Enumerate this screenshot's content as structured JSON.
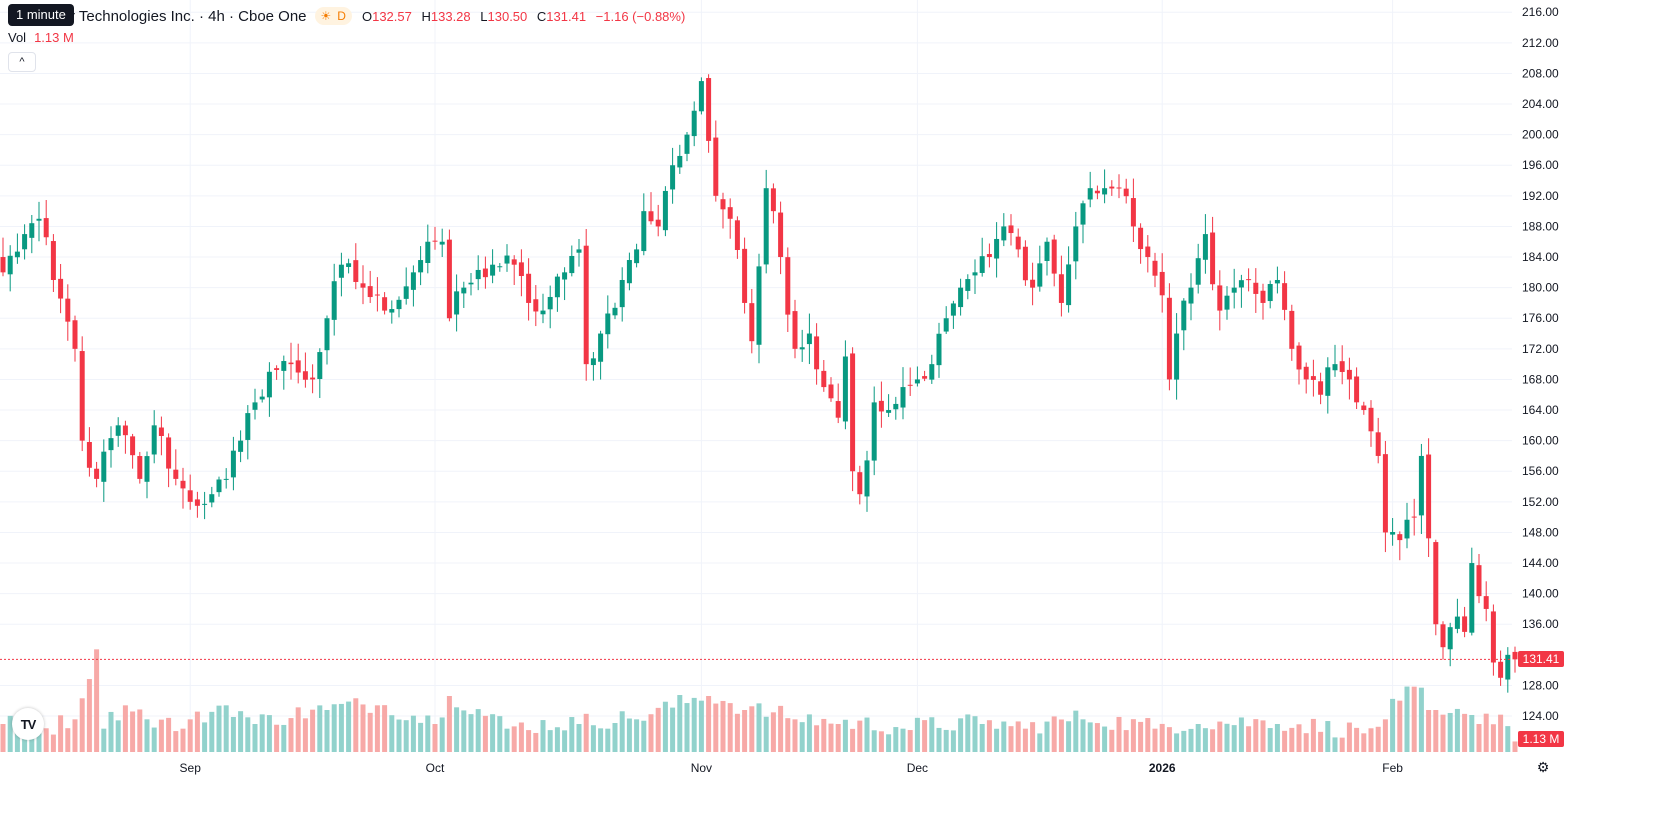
{
  "header": {
    "tooltip": "1 minute",
    "title_visible": "r Technologies Inc. · 4h · Cboe One",
    "session_badge": "D",
    "ohlc": {
      "o_label": "O",
      "o": "132.57",
      "h_label": "H",
      "h": "133.28",
      "l_label": "L",
      "l": "130.50",
      "c_label": "C",
      "c": "131.41",
      "change": "−1.16 (−0.88%)"
    },
    "vol_label": "Vol",
    "vol_value": "1.13 M",
    "collapse_icon": "chevron-up-icon",
    "collapse_glyph": "^"
  },
  "logo_text": "TV",
  "last_price_tag": "131.41",
  "last_volume_tag": "1.13 M",
  "settings_icon": "settings-gear-icon",
  "settings_glyph": "⚙",
  "colors": {
    "up": "#089981",
    "down": "#f23645",
    "up_vol": "#92d2cc",
    "down_vol": "#f7a9a7",
    "grid": "#f0f3fa",
    "text": "#131722"
  },
  "chart_data": {
    "type": "candlestick",
    "timeframe": "4h",
    "y_axis_ticks": [
      "216.00",
      "212.00",
      "208.00",
      "204.00",
      "200.00",
      "196.00",
      "192.00",
      "188.00",
      "184.00",
      "180.00",
      "176.00",
      "172.00",
      "168.00",
      "164.00",
      "160.00",
      "156.00",
      "152.00",
      "148.00",
      "144.00",
      "140.00",
      "136.00",
      "128.00",
      "124.00"
    ],
    "ylim": [
      119.3,
      217.6
    ],
    "x_axis_labels": [
      {
        "label": "Sep",
        "bar": 26
      },
      {
        "label": "Oct",
        "bar": 60
      },
      {
        "label": "Nov",
        "bar": 97
      },
      {
        "label": "Dec",
        "bar": 127
      },
      {
        "label": "2026",
        "bar": 161
      },
      {
        "label": "Feb",
        "bar": 193
      }
    ],
    "last_price": 131.41,
    "anchors": [
      [
        0,
        182.0
      ],
      [
        3,
        187.0
      ],
      [
        5,
        189.0
      ],
      [
        7,
        181.0
      ],
      [
        10,
        172.0
      ],
      [
        11,
        160.0
      ],
      [
        13,
        155.0
      ],
      [
        16,
        162.0
      ],
      [
        19,
        155.0
      ],
      [
        21,
        162.0
      ],
      [
        24,
        155.0
      ],
      [
        26,
        152.0
      ],
      [
        29,
        153.0
      ],
      [
        31,
        155.0
      ],
      [
        33,
        160.0
      ],
      [
        35,
        165.0
      ],
      [
        37,
        169.0
      ],
      [
        40,
        170.0
      ],
      [
        43,
        168.0
      ],
      [
        45,
        176.0
      ],
      [
        47,
        183.0
      ],
      [
        50,
        180.0
      ],
      [
        53,
        177.0
      ],
      [
        57,
        182.0
      ],
      [
        59,
        186.0
      ],
      [
        61,
        186.0
      ],
      [
        62,
        176.0
      ],
      [
        64,
        180.0
      ],
      [
        68,
        183.0
      ],
      [
        71,
        183.0
      ],
      [
        73,
        178.0
      ],
      [
        75,
        177.0
      ],
      [
        78,
        182.0
      ],
      [
        80,
        185.0
      ],
      [
        81,
        170.0
      ],
      [
        83,
        174.0
      ],
      [
        86,
        181.0
      ],
      [
        88,
        185.0
      ],
      [
        89,
        190.0
      ],
      [
        91,
        188.0
      ],
      [
        93,
        196.0
      ],
      [
        95,
        200.0
      ],
      [
        97,
        207.0
      ],
      [
        99,
        192.0
      ],
      [
        101,
        189.0
      ],
      [
        103,
        178.0
      ],
      [
        104,
        173.0
      ],
      [
        106,
        193.0
      ],
      [
        107,
        190.0
      ],
      [
        108,
        184.0
      ],
      [
        110,
        172.0
      ],
      [
        112,
        174.0
      ],
      [
        114,
        167.0
      ],
      [
        116,
        163.0
      ],
      [
        117,
        171.0
      ],
      [
        118,
        156.0
      ],
      [
        119,
        153.0
      ],
      [
        121,
        165.0
      ],
      [
        123,
        164.0
      ],
      [
        125,
        167.0
      ],
      [
        127,
        168.0
      ],
      [
        129,
        170.0
      ],
      [
        131,
        176.0
      ],
      [
        133,
        180.0
      ],
      [
        135,
        182.0
      ],
      [
        137,
        184.0
      ],
      [
        139,
        188.0
      ],
      [
        141,
        185.0
      ],
      [
        143,
        180.0
      ],
      [
        145,
        186.0
      ],
      [
        147,
        178.0
      ],
      [
        149,
        188.0
      ],
      [
        151,
        193.0
      ],
      [
        153,
        193.0
      ],
      [
        155,
        193.0
      ],
      [
        157,
        188.0
      ],
      [
        159,
        184.0
      ],
      [
        161,
        179.0
      ],
      [
        162,
        168.0
      ],
      [
        163,
        174.0
      ],
      [
        165,
        180.0
      ],
      [
        167,
        187.0
      ],
      [
        169,
        177.0
      ],
      [
        171,
        180.0
      ],
      [
        173,
        181.0
      ],
      [
        175,
        178.0
      ],
      [
        177,
        181.0
      ],
      [
        179,
        172.0
      ],
      [
        181,
        168.0
      ],
      [
        183,
        166.0
      ],
      [
        185,
        170.0
      ],
      [
        187,
        168.0
      ],
      [
        189,
        164.0
      ],
      [
        191,
        158.0
      ],
      [
        192,
        148.0
      ],
      [
        194,
        147.0
      ],
      [
        196,
        150.0
      ],
      [
        197,
        158.0
      ],
      [
        199,
        136.0
      ],
      [
        200,
        133.0
      ],
      [
        202,
        137.0
      ],
      [
        203,
        135.0
      ],
      [
        204,
        144.0
      ],
      [
        206,
        138.0
      ],
      [
        207,
        131.0
      ],
      [
        208,
        129.0
      ],
      [
        209,
        132.0
      ],
      [
        210,
        131.4
      ]
    ],
    "volume_ylim": [
      0,
      12.0
    ],
    "volume_anchors": [
      [
        0,
        3.0
      ],
      [
        5,
        2.0
      ],
      [
        10,
        3.5
      ],
      [
        13,
        11.0
      ],
      [
        14,
        2.5
      ],
      [
        17,
        5.0
      ],
      [
        20,
        3.5
      ],
      [
        25,
        2.5
      ],
      [
        31,
        5.0
      ],
      [
        35,
        3.0
      ],
      [
        45,
        4.5
      ],
      [
        52,
        5.0
      ],
      [
        60,
        3.0
      ],
      [
        62,
        6.0
      ],
      [
        70,
        2.5
      ],
      [
        80,
        3.0
      ],
      [
        88,
        3.5
      ],
      [
        98,
        6.0
      ],
      [
        103,
        4.5
      ],
      [
        110,
        3.5
      ],
      [
        116,
        3.0
      ],
      [
        125,
        2.5
      ],
      [
        136,
        3.0
      ],
      [
        142,
        2.5
      ],
      [
        150,
        3.5
      ],
      [
        160,
        2.5
      ],
      [
        166,
        3.0
      ],
      [
        177,
        3.0
      ],
      [
        189,
        2.0
      ],
      [
        192,
        3.5
      ],
      [
        194,
        5.5
      ],
      [
        196,
        7.0
      ],
      [
        198,
        4.5
      ],
      [
        200,
        4.0
      ],
      [
        205,
        3.0
      ],
      [
        208,
        4.0
      ],
      [
        210,
        1.13
      ]
    ],
    "volume_spikes": [
      {
        "bar": 13,
        "value": 11.0
      },
      {
        "bar": 196,
        "value": 7.0
      },
      {
        "bar": 199,
        "value": 4.5
      }
    ]
  }
}
